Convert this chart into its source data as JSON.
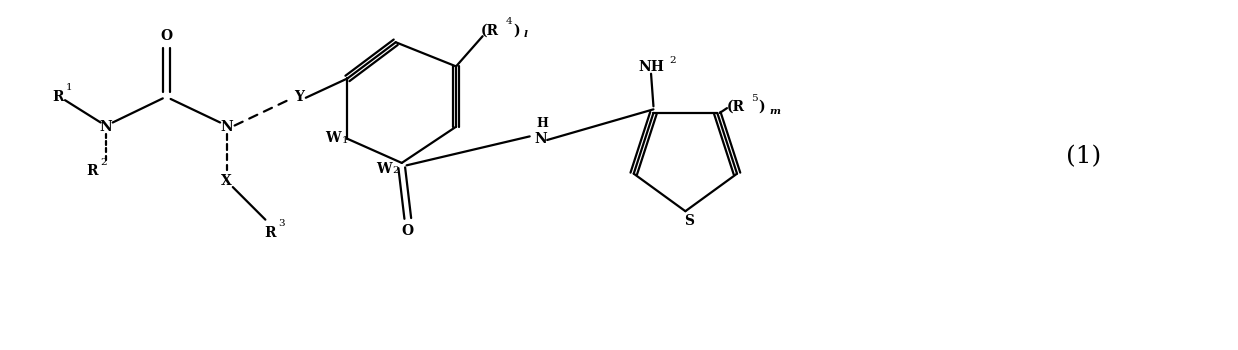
{
  "bg_color": "#ffffff",
  "fig_width": 12.38,
  "fig_height": 3.5,
  "dpi": 100,
  "formula_label": "(1)",
  "formula_label_fontsize": 18,
  "lw": 1.6,
  "fs": 10,
  "fs_small": 7.5,
  "xlim": [
    0,
    100
  ],
  "ylim": [
    0,
    29
  ]
}
